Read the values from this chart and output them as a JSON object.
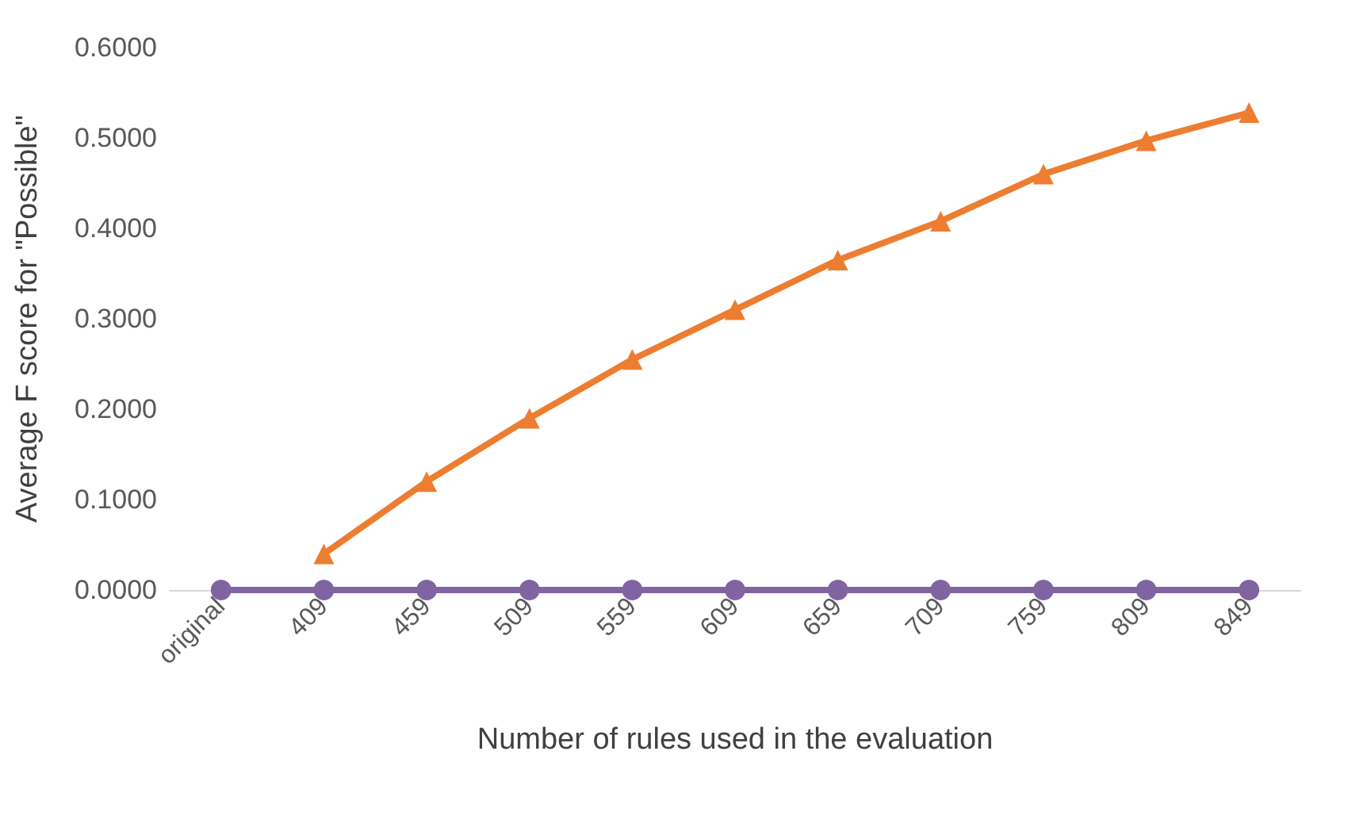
{
  "chart_data": {
    "type": "line",
    "xlabel": "Number of rules used in the evaluation",
    "ylabel": "Average F score for \"Possible\"",
    "categories": [
      "original",
      "409",
      "459",
      "509",
      "559",
      "609",
      "659",
      "709",
      "759",
      "809",
      "849"
    ],
    "series": [
      {
        "color": "#ed7d31",
        "marker": "triangle",
        "values": [
          null,
          0.04,
          0.12,
          0.19,
          0.255,
          0.31,
          0.365,
          0.408,
          0.46,
          0.497,
          0.528
        ]
      },
      {
        "color": "#8064a2",
        "marker": "circle",
        "values": [
          0,
          0,
          0,
          0,
          0,
          0,
          0,
          0,
          0,
          0,
          0
        ]
      }
    ],
    "ylim": [
      0,
      0.6
    ],
    "yticks": [
      {
        "value": 0,
        "label": "0.0000"
      },
      {
        "value": 0.1,
        "label": "0.1000"
      },
      {
        "value": 0.2,
        "label": "0.2000"
      },
      {
        "value": 0.3,
        "label": "0.3000"
      },
      {
        "value": 0.4,
        "label": "0.4000"
      },
      {
        "value": 0.5,
        "label": "0.5000"
      },
      {
        "value": 0.6,
        "label": "0.6000"
      }
    ],
    "grid": false
  }
}
